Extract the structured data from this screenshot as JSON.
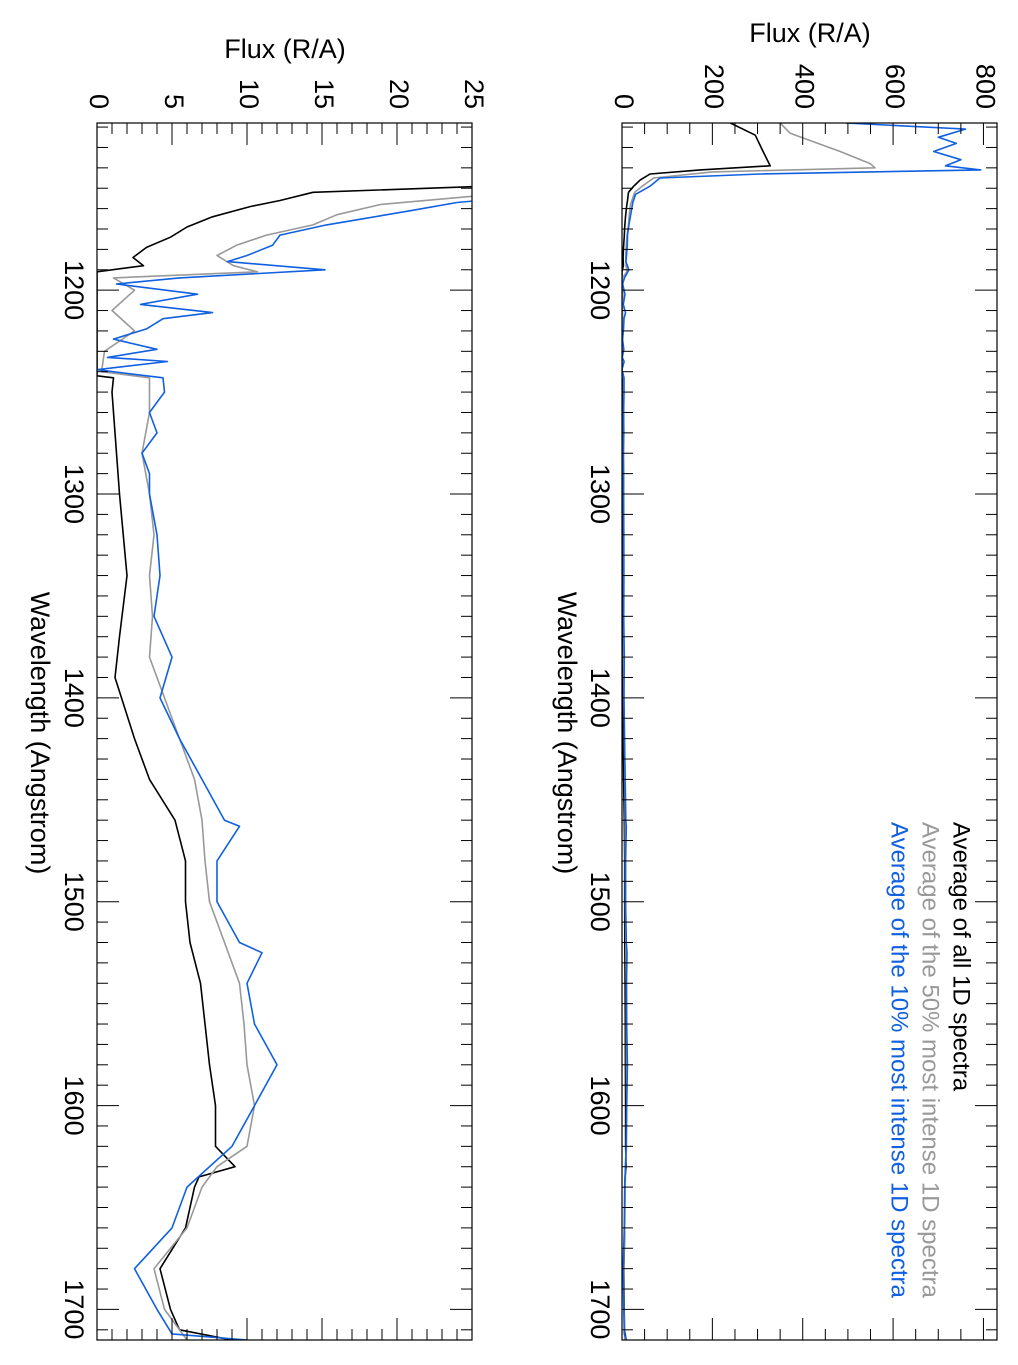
{
  "chart_data": [
    {
      "type": "line",
      "panel": "upper",
      "xlabel": "Wavelength (Angstrom)",
      "ylabel": "Flux (R/A)",
      "xlim": [
        1118,
        1715
      ],
      "ylim": [
        0,
        830
      ],
      "xticks": [
        "1200",
        "1300",
        "1400",
        "1500",
        "1600",
        "1700"
      ],
      "yticks": [
        "0",
        "200",
        "400",
        "600",
        "800"
      ],
      "legend": "top-right",
      "orientation": "rotated 90 degrees clockwise"
    },
    {
      "type": "line",
      "panel": "lower",
      "xlabel": "Wavelength (Angstrom)",
      "ylabel": "Flux (R/A)",
      "xlim": [
        1118,
        1715
      ],
      "ylim": [
        0,
        25
      ],
      "xticks": [
        "1200",
        "1300",
        "1400",
        "1500",
        "1600",
        "1700"
      ],
      "yticks": [
        "0",
        "5",
        "10",
        "15",
        "20",
        "25"
      ],
      "orientation": "rotated 90 degrees clockwise"
    }
  ],
  "series": [
    {
      "name": "Average of all 1D spectra",
      "color": "#000000",
      "points": [
        [
          1118,
          240
        ],
        [
          1124,
          295
        ],
        [
          1131,
          310
        ],
        [
          1139,
          328
        ],
        [
          1141,
          173
        ],
        [
          1143,
          62
        ],
        [
          1146,
          40
        ],
        [
          1149,
          26
        ],
        [
          1152,
          14.4
        ],
        [
          1156,
          12.2
        ],
        [
          1159,
          10.2
        ],
        [
          1164,
          7.7
        ],
        [
          1169,
          6
        ],
        [
          1174,
          4.9
        ],
        [
          1179,
          3.3
        ],
        [
          1184,
          2.4
        ],
        [
          1188,
          3.1
        ],
        [
          1191,
          0
        ],
        [
          1200,
          0
        ],
        [
          1242,
          0
        ],
        [
          1243,
          1.1
        ],
        [
          1250,
          1
        ],
        [
          1300,
          1.5
        ],
        [
          1340,
          2
        ],
        [
          1370,
          1.5
        ],
        [
          1390,
          1.2
        ],
        [
          1420,
          2.5
        ],
        [
          1440,
          3.5
        ],
        [
          1460,
          5.2
        ],
        [
          1480,
          5.9
        ],
        [
          1500,
          5.9
        ],
        [
          1520,
          6.2
        ],
        [
          1540,
          6.9
        ],
        [
          1560,
          7.2
        ],
        [
          1580,
          7.5
        ],
        [
          1600,
          7.9
        ],
        [
          1620,
          7.9
        ],
        [
          1630,
          9.2
        ],
        [
          1635,
          6.8
        ],
        [
          1640,
          6.5
        ],
        [
          1660,
          5.9
        ],
        [
          1680,
          4.2
        ],
        [
          1700,
          4.9
        ],
        [
          1710,
          5.5
        ],
        [
          1715,
          9
        ]
      ]
    },
    {
      "name": "Average of the 50% most intense 1D spectra",
      "color": "#999999",
      "points": [
        [
          1118,
          350
        ],
        [
          1123,
          372
        ],
        [
          1132,
          483
        ],
        [
          1138,
          550
        ],
        [
          1140,
          560
        ],
        [
          1142,
          200
        ],
        [
          1145,
          70
        ],
        [
          1149,
          45
        ],
        [
          1152,
          28
        ],
        [
          1158,
          18.9
        ],
        [
          1163,
          16
        ],
        [
          1168,
          14.4
        ],
        [
          1173,
          11.3
        ],
        [
          1178,
          9.3
        ],
        [
          1183,
          8
        ],
        [
          1188,
          9.1
        ],
        [
          1191,
          10.7
        ],
        [
          1194,
          1.1
        ],
        [
          1200,
          2.5
        ],
        [
          1210,
          1
        ],
        [
          1220,
          2.5
        ],
        [
          1230,
          0.5
        ],
        [
          1240,
          0.3
        ],
        [
          1243,
          3.5
        ],
        [
          1260,
          3.5
        ],
        [
          1280,
          3
        ],
        [
          1300,
          3.5
        ],
        [
          1320,
          3.8
        ],
        [
          1340,
          3.5
        ],
        [
          1360,
          3.7
        ],
        [
          1380,
          3.5
        ],
        [
          1400,
          4.5
        ],
        [
          1420,
          5.5
        ],
        [
          1440,
          6.5
        ],
        [
          1460,
          7
        ],
        [
          1480,
          7.2
        ],
        [
          1500,
          7.5
        ],
        [
          1520,
          8.5
        ],
        [
          1540,
          9.5
        ],
        [
          1560,
          9.8
        ],
        [
          1580,
          10
        ],
        [
          1600,
          10.5
        ],
        [
          1620,
          10
        ],
        [
          1630,
          8
        ],
        [
          1640,
          7
        ],
        [
          1660,
          6
        ],
        [
          1680,
          3.8
        ],
        [
          1700,
          4.5
        ],
        [
          1715,
          6
        ]
      ]
    },
    {
      "name": "Average of the 10% most intense 1D spectra",
      "color": "#1060e0",
      "points": [
        [
          1118,
          495
        ],
        [
          1121,
          760
        ],
        [
          1125,
          700
        ],
        [
          1128,
          740
        ],
        [
          1132,
          690
        ],
        [
          1136,
          750
        ],
        [
          1139,
          716
        ],
        [
          1141,
          794
        ],
        [
          1143,
          306
        ],
        [
          1145,
          84
        ],
        [
          1149,
          62
        ],
        [
          1153,
          30
        ],
        [
          1157,
          24
        ],
        [
          1161,
          20.9
        ],
        [
          1168,
          15.3
        ],
        [
          1173,
          12.2
        ],
        [
          1178,
          11.7
        ],
        [
          1183,
          10
        ],
        [
          1186,
          8.7
        ],
        [
          1190,
          15.2
        ],
        [
          1194,
          5.5
        ],
        [
          1197,
          1.3
        ],
        [
          1202,
          6.7
        ],
        [
          1207,
          2.9
        ],
        [
          1211,
          7.7
        ],
        [
          1214,
          4.4
        ],
        [
          1219,
          3.3
        ],
        [
          1224,
          1.1
        ],
        [
          1229,
          4
        ],
        [
          1233,
          0.7
        ],
        [
          1235,
          4.7
        ],
        [
          1239,
          0
        ],
        [
          1243,
          4.4
        ],
        [
          1250,
          4.5
        ],
        [
          1260,
          3.5
        ],
        [
          1270,
          4
        ],
        [
          1280,
          3
        ],
        [
          1290,
          3.5
        ],
        [
          1300,
          3.5
        ],
        [
          1320,
          4
        ],
        [
          1340,
          4.2
        ],
        [
          1360,
          3.8
        ],
        [
          1380,
          5
        ],
        [
          1400,
          4.2
        ],
        [
          1420,
          5.5
        ],
        [
          1440,
          7
        ],
        [
          1460,
          8.5
        ],
        [
          1463,
          9.5
        ],
        [
          1480,
          8
        ],
        [
          1500,
          8
        ],
        [
          1520,
          9.5
        ],
        [
          1525,
          11
        ],
        [
          1540,
          10
        ],
        [
          1560,
          10.5
        ],
        [
          1580,
          12
        ],
        [
          1600,
          10.5
        ],
        [
          1620,
          9
        ],
        [
          1640,
          6
        ],
        [
          1660,
          5
        ],
        [
          1680,
          2.5
        ],
        [
          1700,
          4
        ],
        [
          1712,
          5
        ],
        [
          1715,
          10
        ]
      ]
    }
  ]
}
